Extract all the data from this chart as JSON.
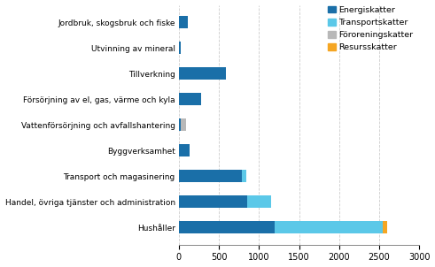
{
  "categories": [
    "Hushåller",
    "Handel, övriga tjänster och administration",
    "Transport och magasinering",
    "Byggverksamhet",
    "Vattenförsörjning och avfallshantering",
    "Försörjning av el, gas, värme och kyla",
    "Tillverkning",
    "Utvinning av mineral",
    "Jordbruk, skogsbruk och fiske"
  ],
  "energiskatter": [
    1200,
    850,
    790,
    130,
    20,
    280,
    590,
    25,
    110
  ],
  "transportskatter": [
    1350,
    300,
    50,
    0,
    0,
    0,
    0,
    0,
    0
  ],
  "fororeningskatter": [
    0,
    0,
    0,
    0,
    75,
    0,
    0,
    0,
    0
  ],
  "resursskatter": [
    55,
    0,
    0,
    0,
    0,
    0,
    0,
    0,
    0
  ],
  "color_energi": "#1a6fa8",
  "color_transport": "#5bc8e8",
  "color_fororenings": "#b8b8b8",
  "color_resurss": "#f5a623",
  "xlim": [
    0,
    3000
  ],
  "xticks": [
    0,
    500,
    1000,
    1500,
    2000,
    2500,
    3000
  ],
  "legend_labels": [
    "Energiskatter",
    "Transportskatter",
    "Föroreningskatter",
    "Resursskatter"
  ],
  "bar_height": 0.5,
  "figsize": [
    4.91,
    3.02
  ],
  "dpi": 100
}
